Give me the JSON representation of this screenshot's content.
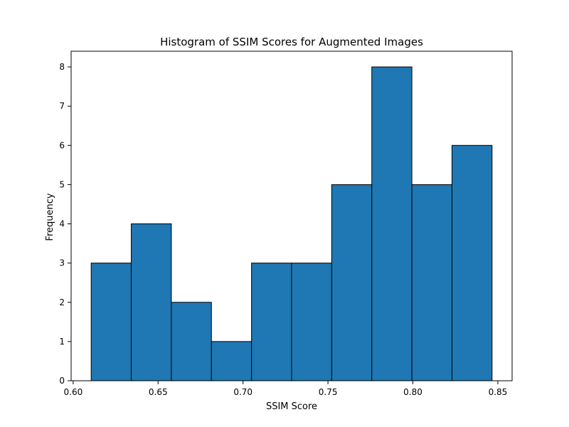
{
  "chart_data": {
    "type": "bar",
    "title": "Histogram of SSIM Scores for Augmented Images",
    "xlabel": "SSIM Score",
    "ylabel": "Frequency",
    "bins": [
      {
        "x0": 0.6106,
        "x1": 0.6342,
        "count": 3
      },
      {
        "x0": 0.6342,
        "x1": 0.6578,
        "count": 4
      },
      {
        "x0": 0.6578,
        "x1": 0.6814,
        "count": 2
      },
      {
        "x0": 0.6814,
        "x1": 0.705,
        "count": 1
      },
      {
        "x0": 0.705,
        "x1": 0.7286,
        "count": 3
      },
      {
        "x0": 0.7286,
        "x1": 0.7522,
        "count": 3
      },
      {
        "x0": 0.7522,
        "x1": 0.7758,
        "count": 5
      },
      {
        "x0": 0.7758,
        "x1": 0.7994,
        "count": 8
      },
      {
        "x0": 0.7994,
        "x1": 0.823,
        "count": 5
      },
      {
        "x0": 0.823,
        "x1": 0.8466,
        "count": 6
      }
    ],
    "xlim": [
      0.5988,
      0.8584
    ],
    "ylim": [
      0,
      8.4
    ],
    "xticks": [
      0.6,
      0.65,
      0.7,
      0.75,
      0.8,
      0.85
    ],
    "xtick_labels": [
      "0.60",
      "0.65",
      "0.70",
      "0.75",
      "0.80",
      "0.85"
    ],
    "yticks": [
      0,
      1,
      2,
      3,
      4,
      5,
      6,
      7,
      8
    ],
    "ytick_labels": [
      "0",
      "1",
      "2",
      "3",
      "4",
      "5",
      "6",
      "7",
      "8"
    ],
    "bar_color": "#1f77b4",
    "edge_color": "#000000",
    "grid": false,
    "legend": "none"
  }
}
